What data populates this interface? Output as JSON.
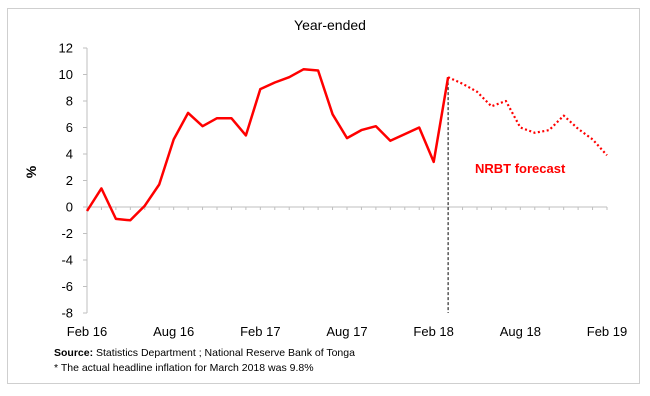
{
  "chart_data": {
    "type": "line",
    "title": "Year-ended",
    "ylabel": "%",
    "xlabel": "",
    "ylim": [
      -8,
      12
    ],
    "yticks": [
      "-8",
      "-6",
      "-4",
      "-2",
      "0",
      "2",
      "4",
      "6",
      "8",
      "10",
      "12"
    ],
    "xticks": [
      "Feb 16",
      "Aug 16",
      "Feb 17",
      "Aug 17",
      "Feb 18",
      "Aug 18",
      "Feb 19"
    ],
    "x_start": "Feb 16",
    "x_end": "Feb 19",
    "grid": false,
    "series": [
      {
        "style": "solid",
        "color": "#ff0000",
        "points": [
          {
            "x": "Feb 16",
            "y": -0.3
          },
          {
            "x": "Mar 16",
            "y": 1.4
          },
          {
            "x": "Apr 16",
            "y": -0.9
          },
          {
            "x": "May 16",
            "y": -1.0
          },
          {
            "x": "Jun 16",
            "y": 0.1
          },
          {
            "x": "Jul 16",
            "y": 1.7
          },
          {
            "x": "Aug 16",
            "y": 5.1
          },
          {
            "x": "Sep 16",
            "y": 7.1
          },
          {
            "x": "Oct 16",
            "y": 6.1
          },
          {
            "x": "Nov 16",
            "y": 6.7
          },
          {
            "x": "Dec 16",
            "y": 6.7
          },
          {
            "x": "Jan 17",
            "y": 5.4
          },
          {
            "x": "Feb 17",
            "y": 8.9
          },
          {
            "x": "Mar 17",
            "y": 9.4
          },
          {
            "x": "Apr 17",
            "y": 9.8
          },
          {
            "x": "May 17",
            "y": 10.4
          },
          {
            "x": "Jun 17",
            "y": 10.3
          },
          {
            "x": "Jul 17",
            "y": 7.0
          },
          {
            "x": "Aug 17",
            "y": 5.2
          },
          {
            "x": "Sep 17",
            "y": 5.8
          },
          {
            "x": "Oct 17",
            "y": 6.1
          },
          {
            "x": "Nov 17",
            "y": 5.0
          },
          {
            "x": "Dec 17",
            "y": 5.5
          },
          {
            "x": "Jan 18",
            "y": 6.0
          },
          {
            "x": "Feb 18",
            "y": 3.4
          },
          {
            "x": "Mar 18",
            "y": 9.8
          }
        ]
      },
      {
        "style": "dotted",
        "color": "#ff0000",
        "points": [
          {
            "x": "Mar 18",
            "y": 9.8
          },
          {
            "x": "Apr 18",
            "y": 9.3
          },
          {
            "x": "May 18",
            "y": 8.7
          },
          {
            "x": "Jun 18",
            "y": 7.6
          },
          {
            "x": "Jul 18",
            "y": 8.0
          },
          {
            "x": "Aug 18",
            "y": 6.0
          },
          {
            "x": "Sep 18",
            "y": 5.6
          },
          {
            "x": "Oct 18",
            "y": 5.8
          },
          {
            "x": "Nov 18",
            "y": 6.9
          },
          {
            "x": "Dec 18",
            "y": 5.9
          },
          {
            "x": "Jan 19",
            "y": 5.1
          },
          {
            "x": "Feb 19",
            "y": 3.9
          }
        ]
      }
    ],
    "forecast_marker": {
      "x": "Mar 18",
      "style": "dashed vertical line"
    },
    "annotations": [
      {
        "text": "NRBT forecast",
        "color": "#ff0000",
        "bold": true
      }
    ]
  },
  "footnotes": {
    "source_label": "Source:",
    "source_text": " Statistics Department ; National Reserve Bank of Tonga",
    "note": "* The actual headline inflation for March 2018 was 9.8%"
  }
}
